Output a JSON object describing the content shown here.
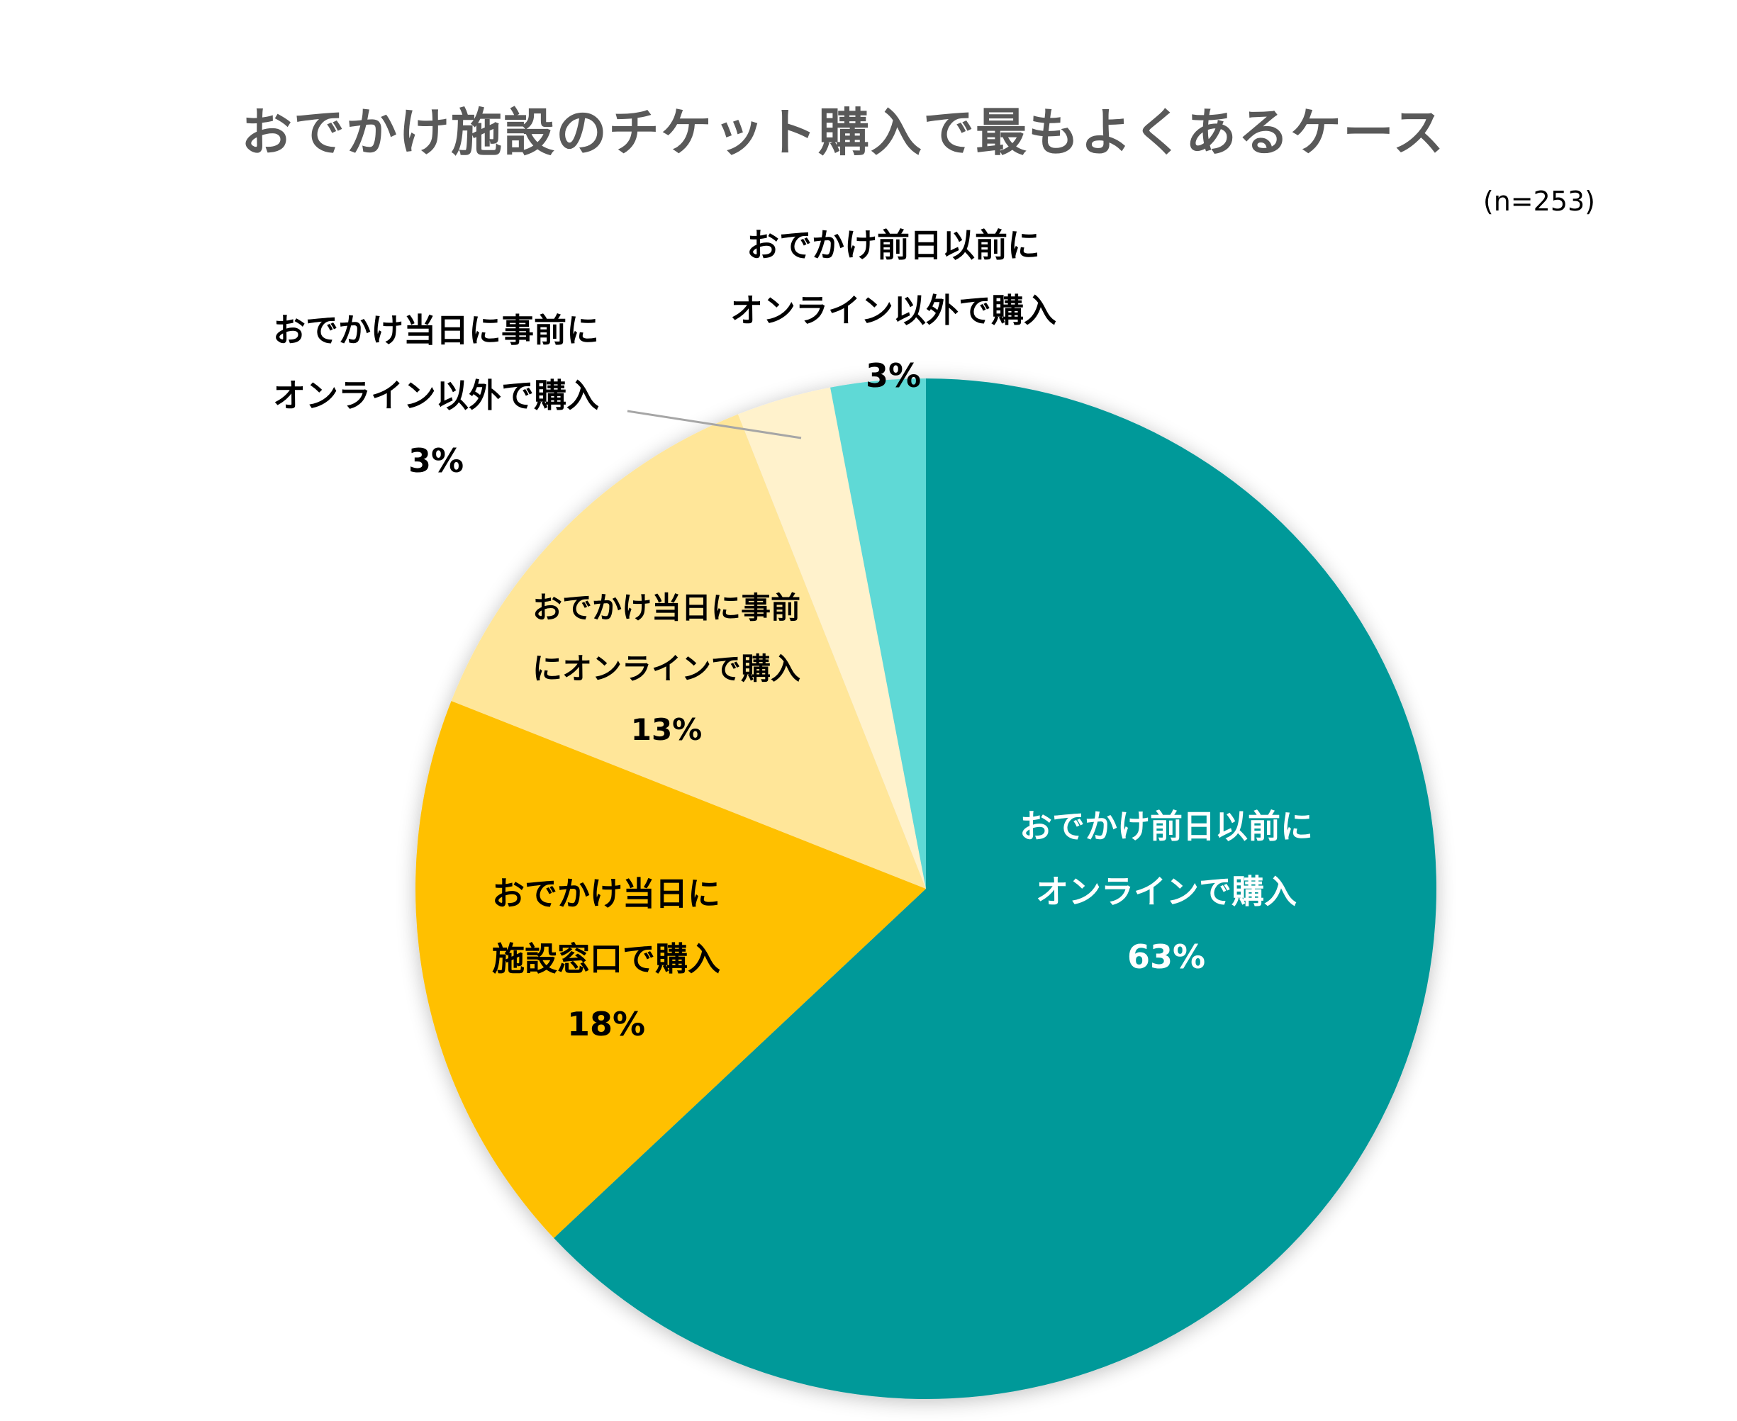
{
  "title": "おでかけ施設のチケット購入で最もよくあるケース",
  "sample_size": "(n=253)",
  "chart_data": {
    "type": "pie",
    "title": "おでかけ施設のチケット購入で最もよくあるケース",
    "subtitle": "(n=253)",
    "start_angle_deg": 0,
    "direction": "clockwise",
    "categories": [
      "おでかけ前日以前にオンラインで購入",
      "おでかけ当日に施設窓口で購入",
      "おでかけ当日に事前にオンラインで購入",
      "おでかけ当日に事前にオンライン以外で購入",
      "おでかけ前日以前にオンライン以外で購入"
    ],
    "values": [
      63,
      18,
      13,
      3,
      3
    ],
    "unit": "%",
    "colors": [
      "#009999",
      "#FFC000",
      "#FFE699",
      "#FFF2CC",
      "#5FD9D6"
    ],
    "legend": "none (data labels)"
  },
  "labels": [
    {
      "line1": "おでかけ前日以前に",
      "line2": "オンラインで購入",
      "pct": "63%"
    },
    {
      "line1": "おでかけ当日に",
      "line2": "施設窓口で購入",
      "pct": "18%"
    },
    {
      "line1": "おでかけ当日に事前",
      "line2": "にオンラインで購入",
      "pct": "13%"
    },
    {
      "line1": "おでかけ当日に事前に",
      "line2": "オンライン以外で購入",
      "pct": "3%"
    },
    {
      "line1": "おでかけ前日以前に",
      "line2": "オンライン以外で購入",
      "pct": "3%"
    }
  ]
}
